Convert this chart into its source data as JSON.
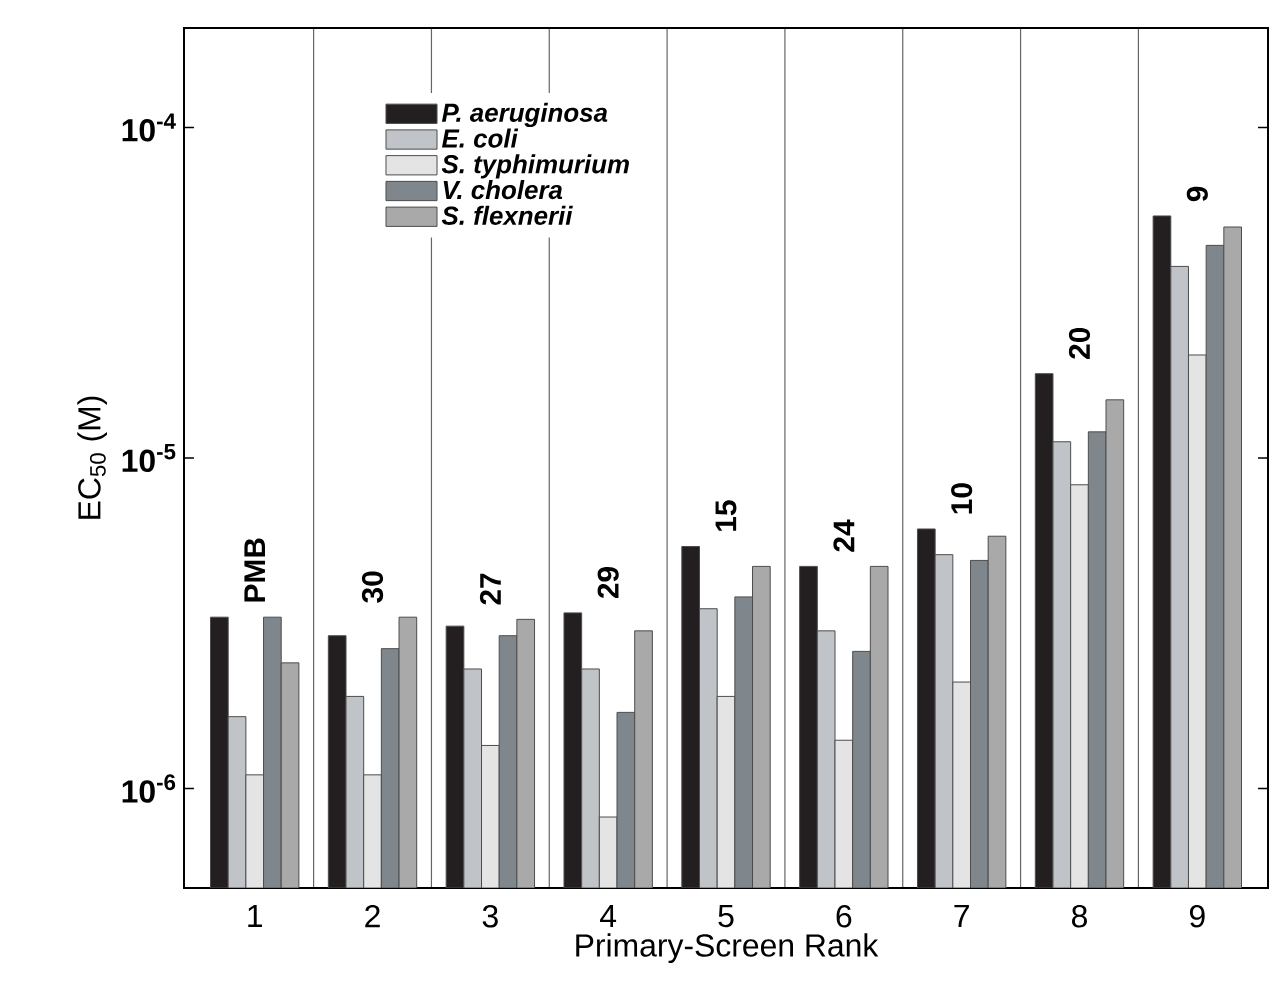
{
  "chart_data": {
    "type": "bar",
    "xlabel": "Primary-Screen Rank",
    "ylabel": "EC$_{50}$ (M)",
    "categories": [
      "1",
      "2",
      "3",
      "4",
      "5",
      "6",
      "7",
      "8",
      "9"
    ],
    "series": [
      {
        "name": "P. aeruginosa",
        "color": "#231f20",
        "values": [
          3.3e-06,
          2.9e-06,
          3.1e-06,
          3.4e-06,
          5.4e-06,
          4.7e-06,
          6.1e-06,
          1.8e-05,
          5.4e-05
        ]
      },
      {
        "name": "E. coli",
        "color": "#c0c4c8",
        "values": [
          1.65e-06,
          1.9e-06,
          2.3e-06,
          2.3e-06,
          3.5e-06,
          3e-06,
          5.1e-06,
          1.12e-05,
          3.8e-05
        ]
      },
      {
        "name": "S. typhimurium",
        "color": "#e4e4e4",
        "values": [
          1.1e-06,
          1.1e-06,
          1.35e-06,
          8.2e-07,
          1.9e-06,
          1.4e-06,
          2.1e-06,
          8.3e-06,
          2.05e-05
        ]
      },
      {
        "name": "V. cholera",
        "color": "#80878c",
        "values": [
          3.3e-06,
          2.65e-06,
          2.9e-06,
          1.7e-06,
          3.8e-06,
          2.6e-06,
          4.9e-06,
          1.2e-05,
          4.4e-05
        ]
      },
      {
        "name": "S. flexnerii",
        "color": "#a9a9a9",
        "values": [
          2.4e-06,
          3.3e-06,
          3.25e-06,
          3e-06,
          4.7e-06,
          4.7e-06,
          5.8e-06,
          1.5e-05,
          5e-05
        ]
      }
    ],
    "log": "y",
    "ylim": [
      5e-07,
      0.0002
    ],
    "yticks": [
      {
        "value": 1e-06,
        "label": "10$^{-6}$"
      },
      {
        "value": 1e-05,
        "label": "10$^{-5}$"
      },
      {
        "value": 0.0001,
        "label": "10$^{-4}$"
      }
    ],
    "grid": "x",
    "legend": "top left",
    "annotations": [
      "PMB",
      "30",
      "27",
      "29",
      "15",
      "24",
      "10",
      "20",
      "9"
    ]
  }
}
